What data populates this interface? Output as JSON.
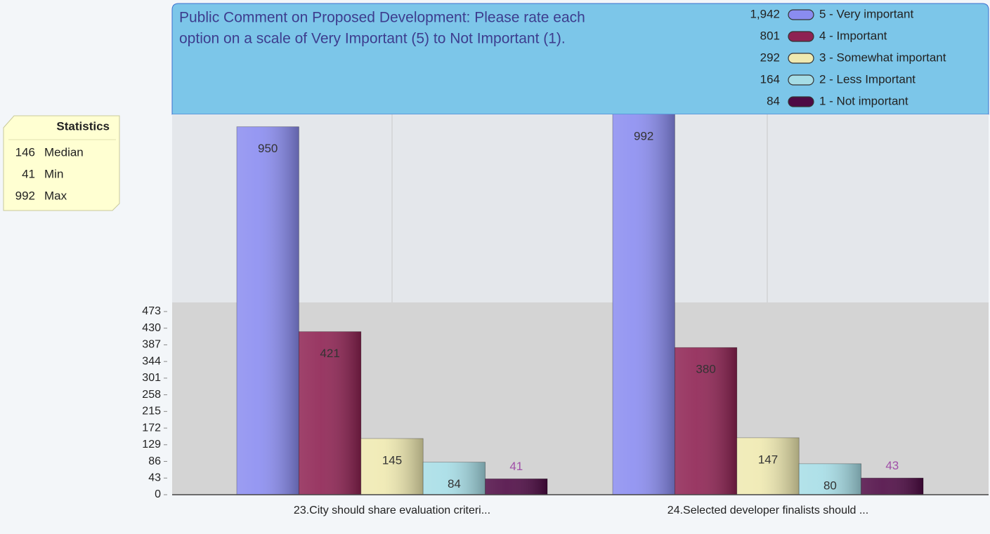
{
  "chart_data": {
    "type": "bar",
    "title": [
      "Public Comment on Proposed Development:  Please rate each",
      "option on a scale of Very Important (5) to Not Important (1)."
    ],
    "categories": [
      "23.City should share evaluation criteri...",
      "24.Selected developer finalists should ..."
    ],
    "series": [
      {
        "name": "5 - Very important",
        "color": "#8a8cf0",
        "total": {
          "value": 1942,
          "label": "1,942"
        },
        "values": [
          950,
          992
        ]
      },
      {
        "name": "4 - Important",
        "color": "#8e2252",
        "total": 801,
        "values": [
          421,
          380
        ]
      },
      {
        "name": "3 - Somewhat important",
        "color": "#efe9b0",
        "total": 292,
        "values": [
          145,
          147
        ]
      },
      {
        "name": "2 - Less Important",
        "color": "#a6dde6",
        "total": 164,
        "values": [
          84,
          80
        ]
      },
      {
        "name": "1 - Not important",
        "color": "#4e0a44",
        "total": 84,
        "values": [
          41,
          43
        ]
      }
    ],
    "ylim": [
      0,
      982
    ],
    "yticks": [
      0,
      43,
      86,
      129,
      172,
      215,
      258,
      301,
      344,
      387,
      430,
      473
    ],
    "legend": "top-right",
    "statistics": {
      "title": "Statistics",
      "rows": [
        {
          "value": 146,
          "label": "Median"
        },
        {
          "value": 41,
          "label": "Min"
        },
        {
          "value": 992,
          "label": "Max"
        }
      ]
    }
  }
}
